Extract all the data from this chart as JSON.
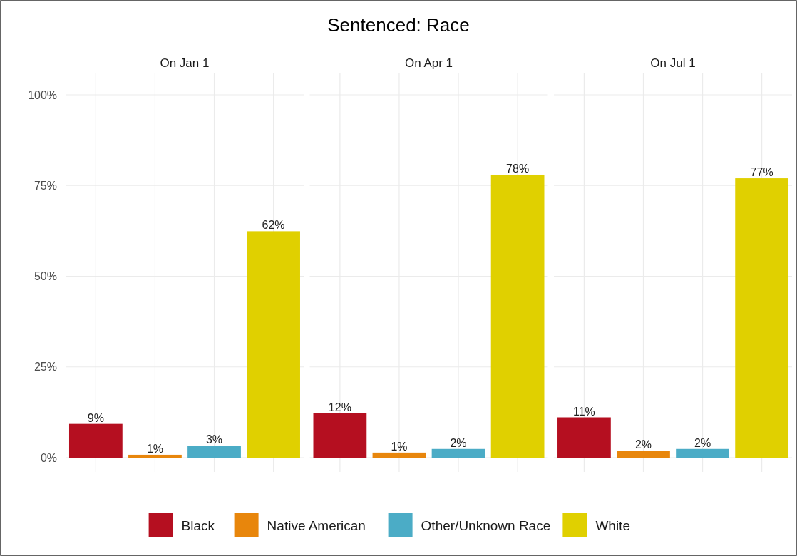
{
  "chart_data": {
    "type": "bar",
    "title": "Sentenced: Race",
    "categories": [
      "On Jan 1",
      "On Apr 1",
      "On Jul 1"
    ],
    "series": [
      {
        "name": "Black",
        "color": "#b50f20",
        "values": [
          9.3,
          12.2,
          11.1
        ],
        "value_labels": [
          "9%",
          "12%",
          "11%"
        ]
      },
      {
        "name": "Native American",
        "color": "#e8860c",
        "values": [
          0.8,
          1.4,
          1.9
        ],
        "value_labels": [
          "1%",
          "1%",
          "2%"
        ]
      },
      {
        "name": "Other/Unknown Race",
        "color": "#4bacc6",
        "values": [
          3.3,
          2.4,
          2.4
        ],
        "value_labels": [
          "3%",
          "2%",
          "2%"
        ]
      },
      {
        "name": "White",
        "color": "#e0d000",
        "values": [
          62.4,
          78,
          77
        ],
        "value_labels": [
          "62%",
          "78%",
          "77%"
        ]
      }
    ],
    "ylim": [
      0,
      100
    ],
    "yticks": [
      {
        "value": 0,
        "label": "0%"
      },
      {
        "value": 25,
        "label": "25%"
      },
      {
        "value": 50,
        "label": "50%"
      },
      {
        "value": 75,
        "label": "75%"
      },
      {
        "value": 100,
        "label": "100%"
      }
    ],
    "grid": true,
    "legend": "bottom"
  }
}
